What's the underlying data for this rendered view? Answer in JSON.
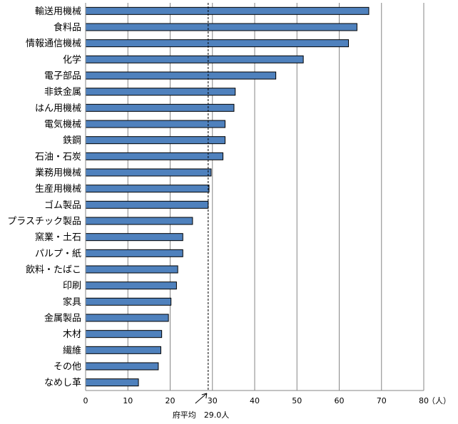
{
  "chart_data": {
    "type": "bar",
    "orientation": "horizontal",
    "categories": [
      "輸送用機械",
      "食料品",
      "情報通信機械",
      "化学",
      "電子部品",
      "非鉄金属",
      "はん用機械",
      "電気機械",
      "鉄鋼",
      "石油・石炭",
      "業務用機械",
      "生産用機械",
      "ゴム製品",
      "プラスチック製品",
      "窯業・土石",
      "パルプ・紙",
      "飲料・たばこ",
      "印刷",
      "家具",
      "金属製品",
      "木材",
      "繊維",
      "その他",
      "なめし革"
    ],
    "values": [
      67.0,
      64.2,
      62.2,
      51.5,
      45.0,
      35.4,
      35.1,
      33.0,
      33.0,
      32.5,
      29.7,
      29.2,
      29.0,
      25.3,
      23.0,
      23.0,
      21.8,
      21.5,
      20.2,
      19.6,
      18.0,
      17.8,
      17.2,
      12.5
    ],
    "xlim": [
      0,
      80
    ],
    "x_ticks": [
      0,
      10,
      20,
      30,
      40,
      50,
      60,
      70,
      80
    ],
    "unit_label": "（人）",
    "grid": true,
    "bar_color": "#4f81bd",
    "bar_edge_color": "#000000",
    "reference_line": {
      "value": 29.0,
      "label": "府平均",
      "value_text": "29.0人",
      "style": "dashed"
    }
  }
}
